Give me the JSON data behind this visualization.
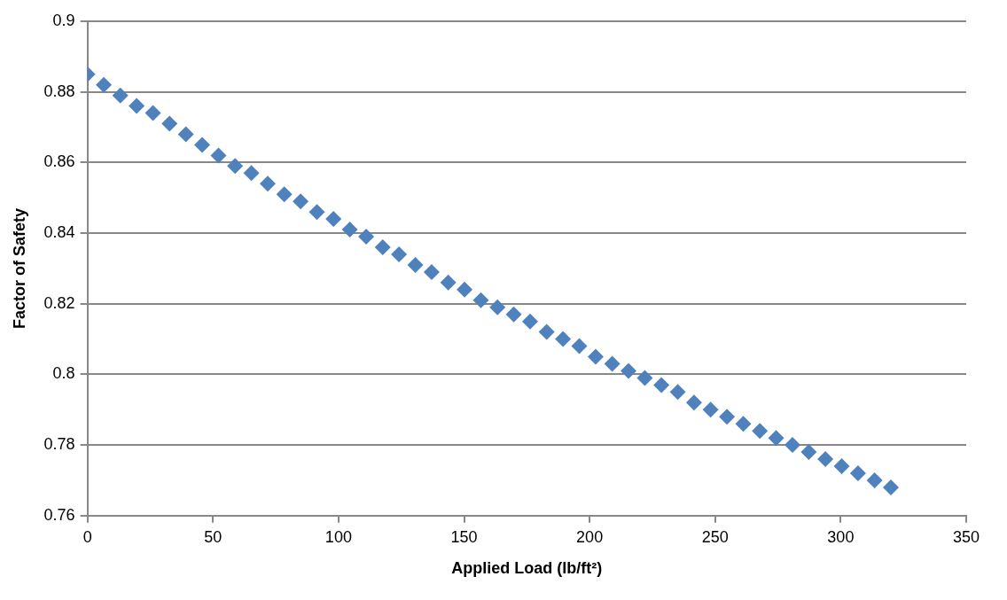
{
  "chart_data": {
    "type": "scatter",
    "xlabel": "Applied Load (lb/ft²)",
    "ylabel": "Factor of Safety",
    "x": [
      0,
      6.5,
      13.1,
      19.6,
      26.1,
      32.7,
      39.2,
      45.7,
      52.2,
      58.8,
      65.3,
      71.8,
      78.4,
      84.9,
      91.4,
      98,
      104.5,
      111,
      117.6,
      124.1,
      130.6,
      137.1,
      143.7,
      150.2,
      156.7,
      163.3,
      169.8,
      176.3,
      182.9,
      189.4,
      195.9,
      202.4,
      209,
      215.5,
      222,
      228.6,
      235.1,
      241.6,
      248.2,
      254.7,
      261.2,
      267.8,
      274.3,
      280.8,
      287.3,
      293.9,
      300.4,
      306.9,
      313.5,
      320
    ],
    "series": [
      {
        "color": "#4f81bd",
        "values": [
          0.885,
          0.882,
          0.879,
          0.876,
          0.874,
          0.871,
          0.868,
          0.865,
          0.862,
          0.859,
          0.857,
          0.854,
          0.851,
          0.849,
          0.846,
          0.844,
          0.841,
          0.839,
          0.836,
          0.834,
          0.831,
          0.829,
          0.826,
          0.824,
          0.821,
          0.819,
          0.817,
          0.815,
          0.812,
          0.81,
          0.808,
          0.805,
          0.803,
          0.801,
          0.799,
          0.797,
          0.795,
          0.792,
          0.79,
          0.788,
          0.786,
          0.784,
          0.782,
          0.78,
          0.778,
          0.776,
          0.774,
          0.772,
          0.77,
          0.768
        ]
      }
    ],
    "xlim": [
      0,
      350
    ],
    "xticks": [
      0,
      50,
      100,
      150,
      200,
      250,
      300,
      350
    ],
    "ylim": [
      0.76,
      0.9
    ],
    "yticks": [
      0.76,
      0.78,
      0.8,
      0.82,
      0.84,
      0.86,
      0.88,
      0.9
    ],
    "grid": "y",
    "marker": "diamond"
  }
}
